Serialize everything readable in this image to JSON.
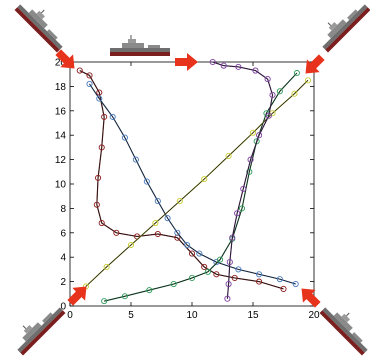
{
  "chart_data": {
    "type": "line",
    "xlim": [
      0,
      20
    ],
    "ylim": [
      0,
      20
    ],
    "x_ticks": [
      0,
      5,
      10,
      15,
      20
    ],
    "y_ticks": [
      0,
      2,
      4,
      6,
      8,
      10,
      12,
      14,
      16,
      18,
      20
    ],
    "x_tick_labels": [
      "0",
      "5",
      "10",
      "15",
      "20"
    ],
    "y_tick_labels": [
      "0",
      "2",
      "4",
      "6",
      "8",
      "10",
      "12",
      "14",
      "16",
      "18",
      "20"
    ],
    "grid": false,
    "legend": "none",
    "series": [
      {
        "color": "#8b1a1a",
        "points": [
          [
            0.8,
            19.3
          ],
          [
            1.6,
            18.9
          ],
          [
            2.4,
            17.5
          ],
          [
            2.8,
            15.5
          ],
          [
            2.6,
            13.0
          ],
          [
            2.3,
            10.5
          ],
          [
            2.2,
            8.3
          ],
          [
            2.6,
            6.8
          ],
          [
            3.8,
            6.0
          ],
          [
            5.5,
            5.7
          ],
          [
            7.2,
            5.9
          ],
          [
            8.8,
            5.6
          ],
          [
            10.0,
            4.3
          ],
          [
            11.0,
            3.2
          ],
          [
            12.0,
            2.6
          ],
          [
            13.5,
            2.3
          ],
          [
            15.5,
            2.0
          ],
          [
            17.5,
            1.4
          ]
        ],
        "markers": true
      },
      {
        "color": "#4a7bbf",
        "points": [
          [
            1.6,
            18.2
          ],
          [
            2.4,
            17.0
          ],
          [
            3.5,
            15.5
          ],
          [
            4.5,
            13.8
          ],
          [
            5.4,
            12.0
          ],
          [
            6.3,
            10.2
          ],
          [
            7.2,
            8.6
          ],
          [
            8.0,
            7.2
          ],
          [
            8.8,
            6.0
          ],
          [
            9.6,
            5.0
          ],
          [
            10.6,
            4.3
          ],
          [
            12.0,
            3.6
          ],
          [
            13.8,
            3.0
          ],
          [
            15.5,
            2.6
          ],
          [
            17.2,
            2.2
          ],
          [
            18.5,
            1.8
          ]
        ],
        "markers": true
      },
      {
        "color": "#2e9b5a",
        "points": [
          [
            2.8,
            0.4
          ],
          [
            4.5,
            0.8
          ],
          [
            6.5,
            1.3
          ],
          [
            8.5,
            1.8
          ],
          [
            10.0,
            2.3
          ],
          [
            11.3,
            2.8
          ],
          [
            12.3,
            3.8
          ],
          [
            13.3,
            5.5
          ],
          [
            14.1,
            8.0
          ],
          [
            14.7,
            11.0
          ],
          [
            15.3,
            13.5
          ],
          [
            16.1,
            15.8
          ],
          [
            17.2,
            17.6
          ],
          [
            18.6,
            19.1
          ]
        ],
        "markers": true
      },
      {
        "color": "#c9cc33",
        "points": [
          [
            1.3,
            1.6
          ],
          [
            3.0,
            3.2
          ],
          [
            5.0,
            5.0
          ],
          [
            7.0,
            6.8
          ],
          [
            9.0,
            8.6
          ],
          [
            11.0,
            10.4
          ],
          [
            13.0,
            12.3
          ],
          [
            15.0,
            14.2
          ],
          [
            16.6,
            15.8
          ],
          [
            18.4,
            17.4
          ],
          [
            19.5,
            18.5
          ]
        ],
        "markers": true
      },
      {
        "color": "#7b3f9e",
        "points": [
          [
            11.7,
            20.0
          ],
          [
            12.6,
            19.7
          ],
          [
            13.8,
            19.6
          ],
          [
            15.2,
            19.3
          ],
          [
            16.2,
            18.6
          ],
          [
            16.6,
            17.3
          ],
          [
            16.3,
            15.6
          ],
          [
            15.5,
            14.0
          ],
          [
            14.8,
            12.0
          ],
          [
            14.2,
            9.6
          ],
          [
            13.7,
            7.6
          ],
          [
            13.3,
            5.6
          ],
          [
            13.1,
            3.6
          ],
          [
            13.0,
            1.8
          ],
          [
            12.9,
            0.6
          ]
        ],
        "markers": true
      }
    ],
    "annotations": {
      "ship_icons": [
        "ship-top-left",
        "ship-top-center",
        "ship-top-right",
        "ship-bottom-left",
        "ship-bottom-right"
      ],
      "arrow_color": "#e8331c"
    }
  }
}
